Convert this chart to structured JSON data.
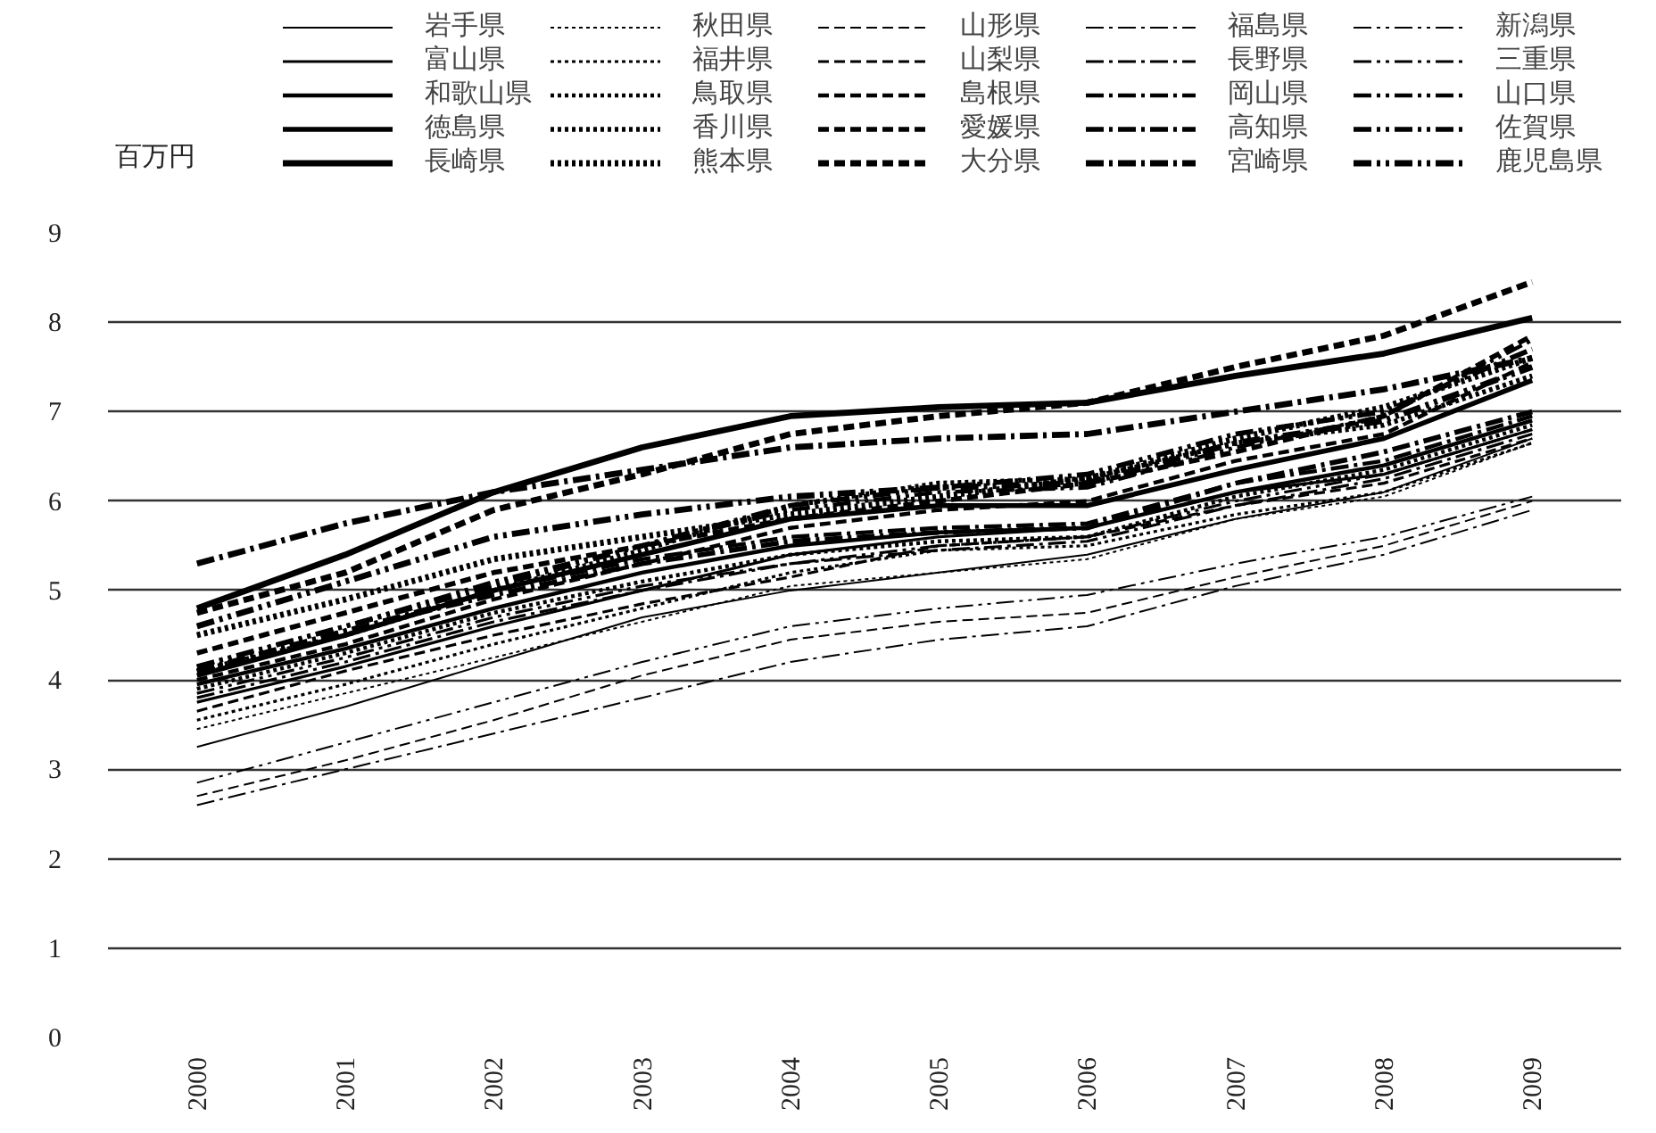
{
  "chart_data": {
    "type": "line",
    "ylabel": "百万円",
    "categories": [
      "2000",
      "2001",
      "2002",
      "2003",
      "2004",
      "2005",
      "2006",
      "2007",
      "2008",
      "2009"
    ],
    "ylim": [
      0,
      9
    ],
    "yticks": [
      0,
      1,
      2,
      3,
      4,
      5,
      6,
      7,
      8,
      9
    ],
    "grid": "y",
    "legend": "top",
    "marker": "none",
    "series": [
      {
        "name": "岩手県",
        "color": "#000000",
        "line_style": "solid",
        "values": [
          3.25,
          3.7,
          4.2,
          4.7,
          5.0,
          5.2,
          5.4,
          5.8,
          6.1,
          6.7
        ]
      },
      {
        "name": "秋田県",
        "color": "#000000",
        "line_style": "dotted",
        "values": [
          3.45,
          3.85,
          4.25,
          4.65,
          5.05,
          5.2,
          5.35,
          5.8,
          6.05,
          6.65
        ]
      },
      {
        "name": "山形県",
        "color": "#000000",
        "line_style": "dashed",
        "values": [
          2.7,
          3.1,
          3.55,
          4.05,
          4.45,
          4.65,
          4.75,
          5.15,
          5.5,
          6.0
        ]
      },
      {
        "name": "福島県",
        "color": "#000000",
        "line_style": "dashdot",
        "values": [
          2.6,
          3.0,
          3.4,
          3.8,
          4.2,
          4.45,
          4.6,
          5.05,
          5.4,
          5.9
        ]
      },
      {
        "name": "新潟県",
        "color": "#000000",
        "line_style": "dashdotdot",
        "values": [
          2.85,
          3.3,
          3.75,
          4.2,
          4.6,
          4.8,
          4.95,
          5.3,
          5.6,
          6.05
        ]
      },
      {
        "name": "富山県",
        "color": "#000000",
        "line_style": "solid",
        "values": [
          3.75,
          4.15,
          4.6,
          5.0,
          5.4,
          5.6,
          5.7,
          6.1,
          6.3,
          6.8
        ]
      },
      {
        "name": "福井県",
        "color": "#000000",
        "line_style": "dotted",
        "values": [
          3.55,
          3.95,
          4.4,
          4.8,
          5.2,
          5.45,
          5.5,
          5.85,
          6.1,
          6.65
        ]
      },
      {
        "name": "山梨県",
        "color": "#000000",
        "line_style": "dashed",
        "values": [
          3.65,
          4.1,
          4.5,
          4.85,
          5.15,
          5.5,
          5.6,
          5.95,
          6.2,
          6.7
        ]
      },
      {
        "name": "長野県",
        "color": "#000000",
        "line_style": "dashdot",
        "values": [
          3.8,
          4.2,
          4.65,
          5.0,
          5.3,
          5.45,
          5.55,
          5.95,
          6.25,
          6.75
        ]
      },
      {
        "name": "三重県",
        "color": "#000000",
        "line_style": "dashdotdot",
        "values": [
          3.85,
          4.25,
          4.7,
          5.05,
          5.3,
          5.5,
          5.6,
          6.0,
          6.3,
          6.8
        ]
      },
      {
        "name": "和歌山県",
        "color": "#000000",
        "line_style": "solid",
        "values": [
          3.95,
          4.35,
          4.8,
          5.2,
          5.5,
          5.65,
          5.7,
          6.1,
          6.4,
          6.9
        ]
      },
      {
        "name": "鳥取県",
        "color": "#000000",
        "line_style": "dotted",
        "values": [
          3.9,
          4.3,
          4.75,
          5.1,
          5.4,
          5.55,
          5.6,
          6.05,
          6.35,
          6.85
        ]
      },
      {
        "name": "島根県",
        "color": "#000000",
        "line_style": "dashed",
        "values": [
          4.0,
          4.4,
          4.9,
          5.3,
          5.7,
          5.9,
          6.0,
          6.45,
          6.75,
          7.55
        ]
      },
      {
        "name": "岡山県",
        "color": "#000000",
        "line_style": "dashdot",
        "values": [
          4.1,
          4.55,
          5.0,
          5.35,
          5.6,
          5.7,
          5.75,
          6.2,
          6.45,
          6.95
        ]
      },
      {
        "name": "山口県",
        "color": "#000000",
        "line_style": "dashdotdot",
        "values": [
          4.15,
          4.6,
          5.1,
          5.5,
          5.9,
          6.1,
          6.15,
          6.6,
          6.95,
          7.8
        ]
      },
      {
        "name": "徳島県",
        "color": "#000000",
        "line_style": "solid",
        "values": [
          4.05,
          4.5,
          5.0,
          5.4,
          5.8,
          5.95,
          5.95,
          6.35,
          6.7,
          7.35
        ]
      },
      {
        "name": "香川県",
        "color": "#000000",
        "line_style": "dotted",
        "values": [
          4.1,
          4.5,
          5.0,
          5.45,
          5.95,
          6.2,
          6.25,
          6.65,
          6.85,
          7.4
        ]
      },
      {
        "name": "愛媛県",
        "color": "#000000",
        "line_style": "dashed",
        "values": [
          4.3,
          4.75,
          5.2,
          5.5,
          5.8,
          6.0,
          6.2,
          6.55,
          6.95,
          7.85
        ]
      },
      {
        "name": "高知県",
        "color": "#000000",
        "line_style": "dashdot",
        "values": [
          4.1,
          4.55,
          4.95,
          5.3,
          5.55,
          5.65,
          5.7,
          6.2,
          6.55,
          7.0
        ]
      },
      {
        "name": "佐賀県",
        "color": "#000000",
        "line_style": "dashdotdot",
        "values": [
          4.15,
          4.6,
          5.05,
          5.5,
          5.95,
          6.15,
          6.3,
          6.75,
          7.0,
          7.7
        ]
      },
      {
        "name": "長崎県",
        "color": "#000000",
        "line_style": "solid",
        "values": [
          4.8,
          5.4,
          6.1,
          6.6,
          6.95,
          7.05,
          7.1,
          7.4,
          7.65,
          8.05
        ]
      },
      {
        "name": "熊本県",
        "color": "#000000",
        "line_style": "dotted",
        "values": [
          4.5,
          4.9,
          5.35,
          5.6,
          5.85,
          6.05,
          6.25,
          6.7,
          7.05,
          7.6
        ]
      },
      {
        "name": "大分県",
        "color": "#000000",
        "line_style": "dashed",
        "values": [
          4.75,
          5.2,
          5.9,
          6.3,
          6.75,
          6.95,
          7.1,
          7.5,
          7.85,
          8.45
        ]
      },
      {
        "name": "宮崎県",
        "color": "#000000",
        "line_style": "dashdot",
        "values": [
          5.3,
          5.75,
          6.1,
          6.35,
          6.6,
          6.7,
          6.75,
          7.0,
          7.25,
          7.6
        ]
      },
      {
        "name": "鹿児島県",
        "color": "#000000",
        "line_style": "dashdotdot",
        "values": [
          4.6,
          5.1,
          5.6,
          5.85,
          6.05,
          6.15,
          6.2,
          6.65,
          6.9,
          7.5
        ]
      }
    ]
  }
}
